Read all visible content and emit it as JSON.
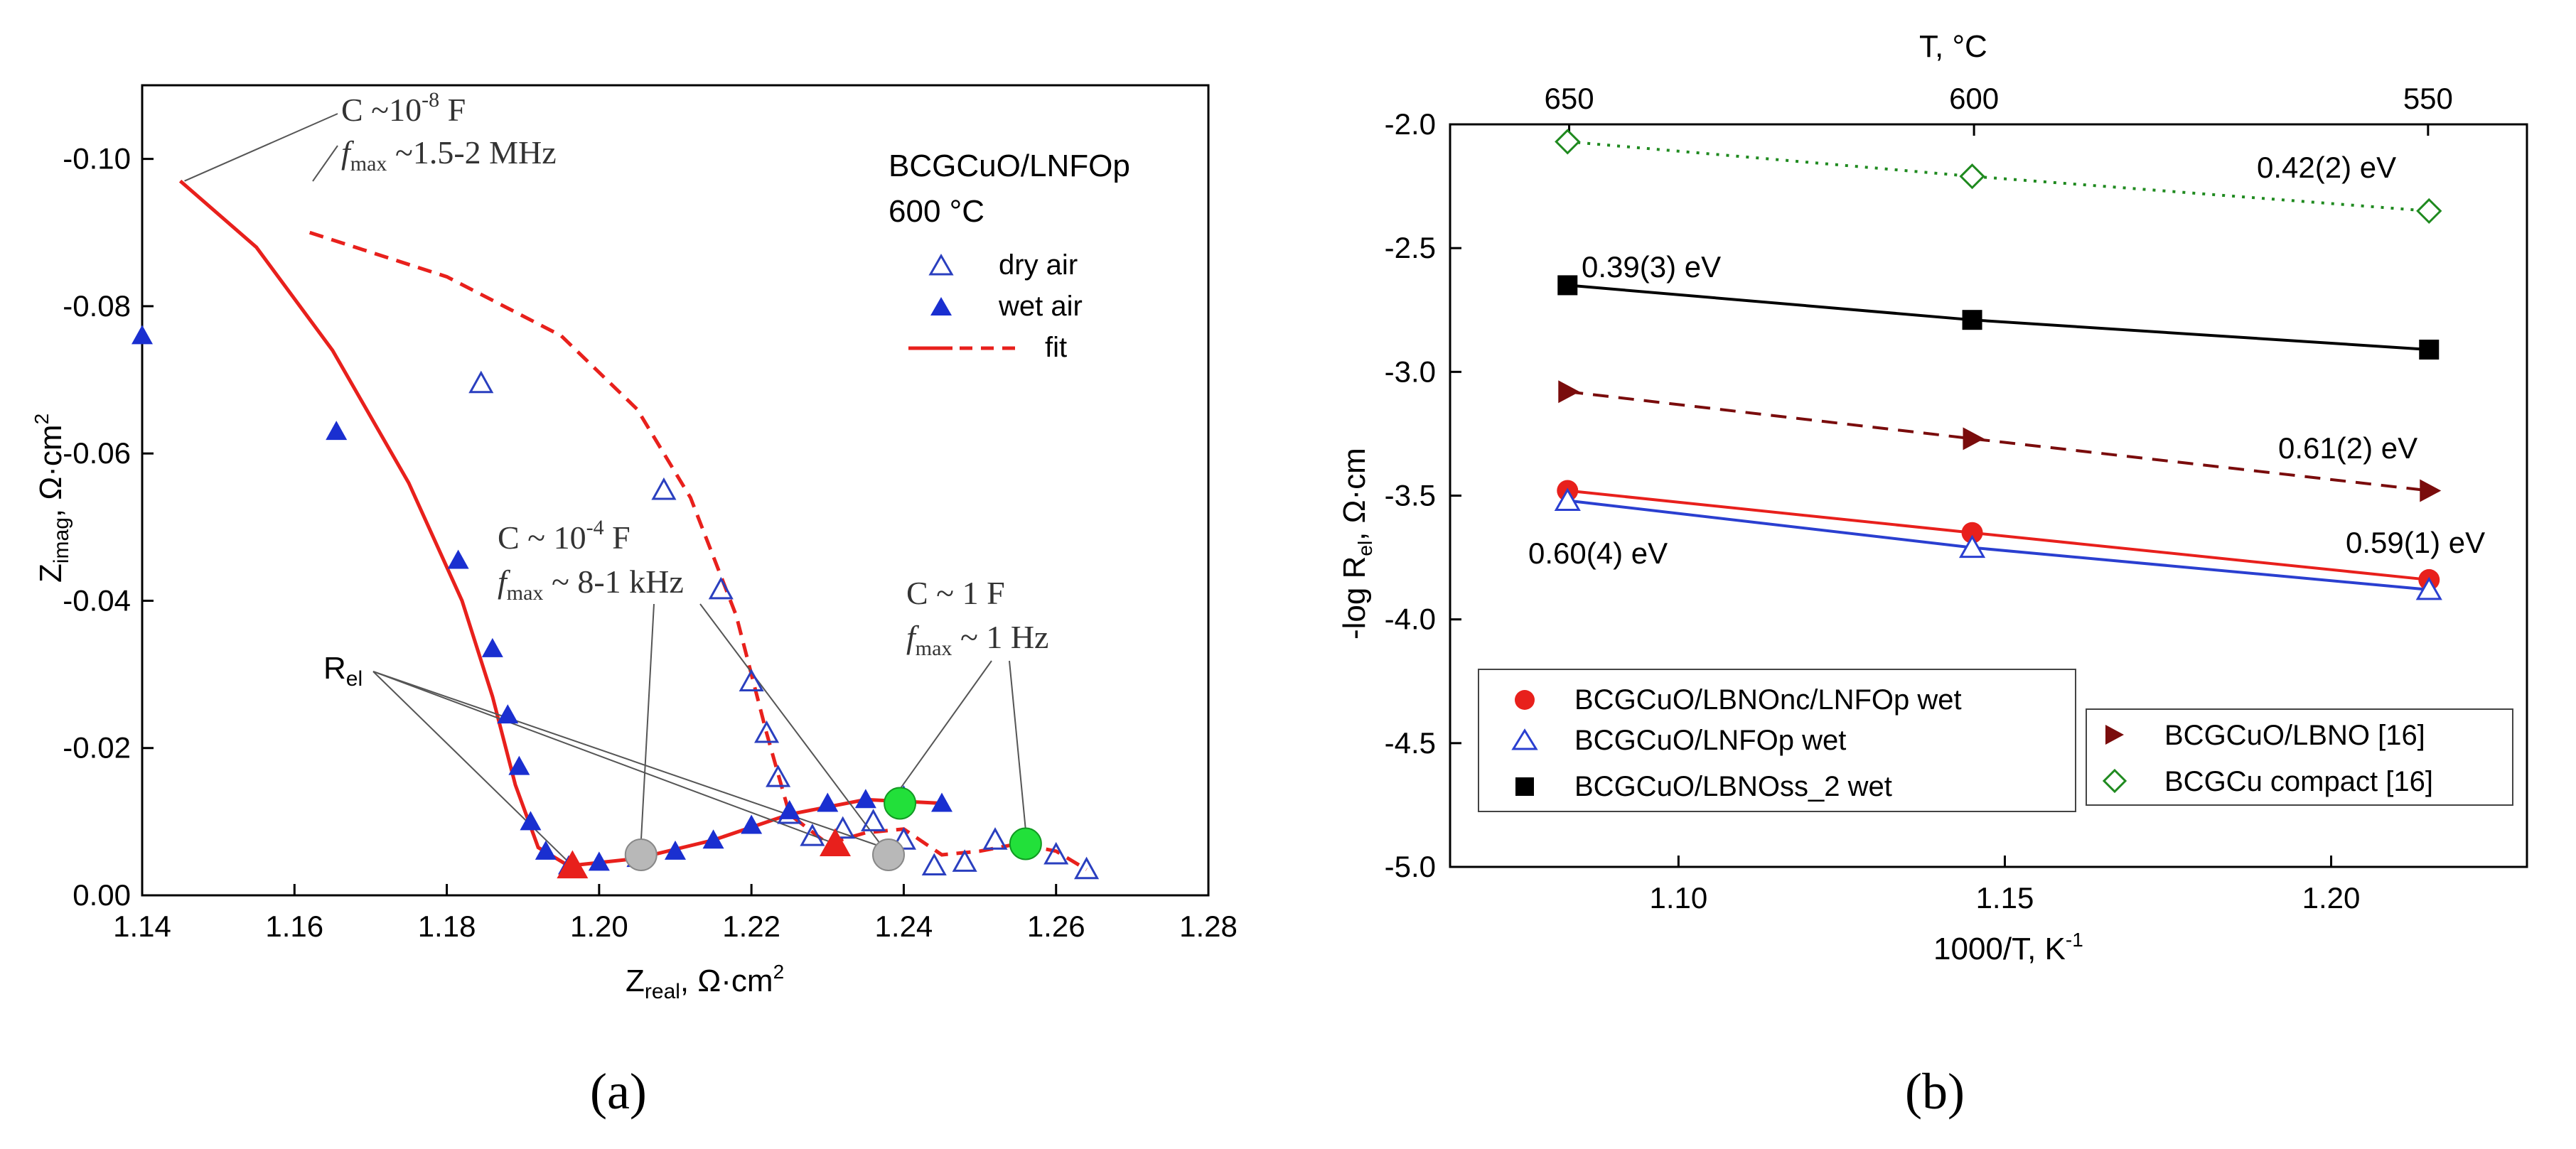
{
  "panel_a": {
    "caption": "(a)",
    "legend_title": "BCGCuO/LNFOp",
    "legend_temp": "600 °C",
    "x_ticks": [
      "1.14",
      "1.16",
      "1.18",
      "1.20",
      "1.22",
      "1.24",
      "1.26",
      "1.28"
    ],
    "y_ticks": [
      "0.00",
      "-0.02",
      "-0.04",
      "-0.06",
      "-0.08",
      "-0.10"
    ],
    "annotations": {
      "c1_cap": "C ~10",
      "c1_exp": "-8",
      "c1_unit": " F",
      "c1_f": "f",
      "c1_fsub": "max",
      "c1_fval": " ~1.5-2 MHz",
      "c2_cap": "C ~ 10",
      "c2_exp": "-4",
      "c2_unit": " F",
      "c2_f": "f",
      "c2_fsub": "max",
      "c2_fval": " ~ 8-1 kHz",
      "c3_cap": "C ~ 1 F",
      "c3_f": "f",
      "c3_fsub": "max",
      "c3_fval": " ~ 1 Hz",
      "rel": "R",
      "rel_sub": "el"
    }
  },
  "panel_b": {
    "caption": "(b)",
    "annotations": {
      "green": "0.42(2) eV",
      "black": "0.39(3) eV",
      "darkred": "0.61(2) eV",
      "blue": "0.60(4) eV",
      "red": "0.59(1) eV"
    }
  },
  "chart_data": [
    {
      "type": "scatter",
      "title": "",
      "xlabel": "Zreal, Ω·cm²",
      "ylabel": "Zimag, Ω·cm²",
      "xlim": [
        1.14,
        1.28
      ],
      "ylim": [
        0.0,
        -0.11
      ],
      "legend": [
        "dry air",
        "wet air",
        "fit"
      ],
      "series": [
        {
          "name": "dry air",
          "marker": "open-triangle",
          "color": "#2a3fbf",
          "x": [
            1.1845,
            1.2085,
            1.216,
            1.22,
            1.222,
            1.2235,
            1.225,
            1.228,
            1.232,
            1.236,
            1.24,
            1.244,
            1.248,
            1.252,
            1.256,
            1.26,
            1.264
          ],
          "y": [
            -0.0695,
            -0.055,
            -0.0415,
            -0.029,
            -0.022,
            -0.016,
            -0.011,
            -0.008,
            -0.009,
            -0.01,
            -0.0075,
            -0.004,
            -0.0045,
            -0.0075,
            -0.0075,
            -0.0055,
            -0.0035
          ]
        },
        {
          "name": "wet air",
          "marker": "filled-triangle",
          "color": "#1a2fd0",
          "x": [
            1.14,
            1.1655,
            1.1815,
            1.186,
            1.188,
            1.1895,
            1.191,
            1.193,
            1.196,
            1.2,
            1.205,
            1.21,
            1.215,
            1.22,
            1.225,
            1.23,
            1.235,
            1.24,
            1.245
          ],
          "y": [
            -0.076,
            -0.063,
            -0.0455,
            -0.0335,
            -0.0245,
            -0.0175,
            -0.01,
            -0.006,
            -0.004,
            -0.0045,
            -0.005,
            -0.006,
            -0.0075,
            -0.0095,
            -0.0115,
            -0.0125,
            -0.013,
            -0.0135,
            -0.0125
          ]
        },
        {
          "name": "fit wet (solid)",
          "color": "#e8201c",
          "x": [
            1.145,
            1.155,
            1.165,
            1.175,
            1.182,
            1.186,
            1.189,
            1.192,
            1.196,
            1.205,
            1.215,
            1.225,
            1.235,
            1.245
          ],
          "y": [
            -0.097,
            -0.088,
            -0.074,
            -0.056,
            -0.04,
            -0.027,
            -0.015,
            -0.0065,
            -0.004,
            -0.005,
            -0.0075,
            -0.011,
            -0.013,
            -0.0125
          ]
        },
        {
          "name": "fit dry (dashed)",
          "color": "#e8201c",
          "x": [
            1.162,
            1.18,
            1.195,
            1.205,
            1.212,
            1.218,
            1.222,
            1.225,
            1.23,
            1.235,
            1.24,
            1.245,
            1.25,
            1.255,
            1.26,
            1.264
          ],
          "y": [
            -0.09,
            -0.084,
            -0.076,
            -0.066,
            -0.054,
            -0.038,
            -0.022,
            -0.011,
            -0.007,
            -0.0085,
            -0.009,
            -0.0055,
            -0.006,
            -0.007,
            -0.006,
            -0.0035
          ]
        }
      ],
      "markers": [
        {
          "name": "R_el red triangles",
          "x": [
            1.1965,
            1.231
          ],
          "y": [
            -0.004,
            -0.007
          ]
        },
        {
          "name": "grey circles",
          "x": [
            1.2055,
            1.238
          ],
          "y": [
            -0.0055,
            -0.0055
          ]
        },
        {
          "name": "green circles",
          "x": [
            1.2395,
            1.256
          ],
          "y": [
            -0.0125,
            -0.007
          ]
        }
      ]
    },
    {
      "type": "line",
      "title": "",
      "xlabel": "1000/T, K⁻¹",
      "ylabel": "-log Rel, Ω·cm",
      "x2label": "T, °C",
      "x2_ticks": [
        "650",
        "600",
        "550"
      ],
      "xlim": [
        1.065,
        1.23
      ],
      "ylim": [
        -5.0,
        -2.0
      ],
      "x_ticks": [
        "1.10",
        "1.15",
        "1.20"
      ],
      "y_ticks": [
        "-2.0",
        "-2.5",
        "-3.0",
        "-3.5",
        "-4.0",
        "-4.5",
        "-5.0"
      ],
      "series": [
        {
          "name": "BCGCuO/LBNOnc/LNFOp wet",
          "color": "#e8201c",
          "marker": "filled-circle",
          "line": "solid",
          "x": [
            1.083,
            1.145,
            1.215
          ],
          "y": [
            -3.48,
            -3.65,
            -3.84
          ]
        },
        {
          "name": "BCGCuO/LNFOp wet",
          "color": "#2a3fd0",
          "marker": "open-triangle",
          "line": "solid",
          "x": [
            1.083,
            1.145,
            1.215
          ],
          "y": [
            -3.52,
            -3.71,
            -3.88
          ]
        },
        {
          "name": "BCGCuO/LBNOss_2 wet",
          "color": "#000000",
          "marker": "filled-square",
          "line": "solid",
          "x": [
            1.083,
            1.145,
            1.215
          ],
          "y": [
            -2.65,
            -2.79,
            -2.91
          ]
        },
        {
          "name": "BCGCuO/LBNO [16]",
          "color": "#7a0c0c",
          "marker": "filled-right-triangle",
          "line": "dashed",
          "x": [
            1.083,
            1.145,
            1.215
          ],
          "y": [
            -3.08,
            -3.27,
            -3.48
          ]
        },
        {
          "name": "BCGCu compact [16]",
          "color": "#1f8a1f",
          "marker": "open-diamond",
          "line": "dotted",
          "x": [
            1.083,
            1.145,
            1.215
          ],
          "y": [
            -2.07,
            -2.21,
            -2.35
          ]
        }
      ]
    }
  ]
}
